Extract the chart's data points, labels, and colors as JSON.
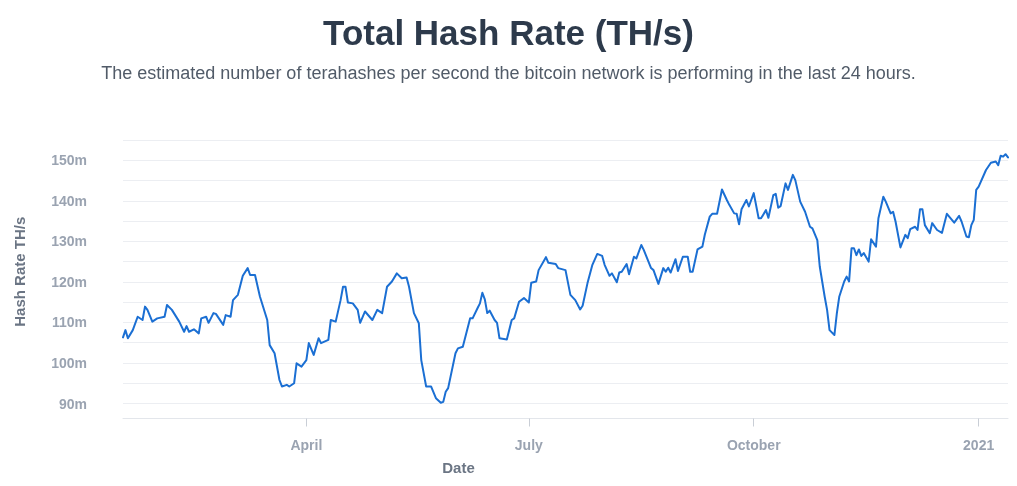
{
  "chart_data": {
    "type": "line",
    "title": "Total Hash Rate (TH/s)",
    "subtitle": "The estimated number of terahashes per second the bitcoin network is performing in the last 24 hours.",
    "xlabel": "Date",
    "ylabel": "Hash Rate TH/s",
    "color": "#1b6fd3",
    "grid": "y",
    "xlim": [
      "2020-01-17",
      "2021-01-13"
    ],
    "xticks": [
      {
        "value": "2020-04-01",
        "label": "April"
      },
      {
        "value": "2020-07-01",
        "label": "July"
      },
      {
        "value": "2020-10-01",
        "label": "October"
      },
      {
        "value": "2021-01-01",
        "label": "2021"
      }
    ],
    "ylim": [
      90000000,
      155000000
    ],
    "yticks": [
      {
        "value": 90000000,
        "label": "90m"
      },
      {
        "value": 95000000,
        "label": null
      },
      {
        "value": 100000000,
        "label": "100m"
      },
      {
        "value": 105000000,
        "label": null
      },
      {
        "value": 110000000,
        "label": "110m"
      },
      {
        "value": 115000000,
        "label": null
      },
      {
        "value": 120000000,
        "label": "120m"
      },
      {
        "value": 125000000,
        "label": null
      },
      {
        "value": 130000000,
        "label": "130m"
      },
      {
        "value": 135000000,
        "label": null
      },
      {
        "value": 140000000,
        "label": "140m"
      },
      {
        "value": 145000000,
        "label": null
      },
      {
        "value": 150000000,
        "label": "150m"
      },
      {
        "value": 155000000,
        "label": null
      }
    ],
    "x": [
      "2020-01-17",
      "2020-01-18",
      "2020-01-19",
      "2020-01-21",
      "2020-01-23",
      "2020-01-25",
      "2020-01-26",
      "2020-01-27",
      "2020-01-29",
      "2020-01-31",
      "2020-02-03",
      "2020-02-04",
      "2020-02-06",
      "2020-02-09",
      "2020-02-11",
      "2020-02-12",
      "2020-02-13",
      "2020-02-15",
      "2020-02-17",
      "2020-02-18",
      "2020-02-20",
      "2020-02-21",
      "2020-02-23",
      "2020-02-24",
      "2020-02-27",
      "2020-02-28",
      "2020-03-01",
      "2020-03-02",
      "2020-03-04",
      "2020-03-06",
      "2020-03-08",
      "2020-03-09",
      "2020-03-11",
      "2020-03-13",
      "2020-03-16",
      "2020-03-17",
      "2020-03-19",
      "2020-03-21",
      "2020-03-22",
      "2020-03-24",
      "2020-03-25",
      "2020-03-27",
      "2020-03-28",
      "2020-03-30",
      "2020-04-01",
      "2020-04-02",
      "2020-04-04",
      "2020-04-06",
      "2020-04-07",
      "2020-04-10",
      "2020-04-11",
      "2020-04-13",
      "2020-04-15",
      "2020-04-16",
      "2020-04-17",
      "2020-04-18",
      "2020-04-20",
      "2020-04-22",
      "2020-04-23",
      "2020-04-25",
      "2020-04-28",
      "2020-04-30",
      "2020-05-02",
      "2020-05-04",
      "2020-05-06",
      "2020-05-08",
      "2020-05-10",
      "2020-05-12",
      "2020-05-13",
      "2020-05-15",
      "2020-05-17",
      "2020-05-18",
      "2020-05-20",
      "2020-05-22",
      "2020-05-24",
      "2020-05-26",
      "2020-05-27",
      "2020-05-28",
      "2020-05-29",
      "2020-06-01",
      "2020-06-02",
      "2020-06-04",
      "2020-06-07",
      "2020-06-08",
      "2020-06-10",
      "2020-06-11",
      "2020-06-12",
      "2020-06-13",
      "2020-06-14",
      "2020-06-15",
      "2020-06-17",
      "2020-06-18",
      "2020-06-19",
      "2020-06-22",
      "2020-06-24",
      "2020-06-25",
      "2020-06-27",
      "2020-06-29",
      "2020-07-01",
      "2020-07-02",
      "2020-07-04",
      "2020-07-05",
      "2020-07-08",
      "2020-07-09",
      "2020-07-12",
      "2020-07-13",
      "2020-07-16",
      "2020-07-18",
      "2020-07-20",
      "2020-07-22",
      "2020-07-23",
      "2020-07-25",
      "2020-07-27",
      "2020-07-29",
      "2020-07-31",
      "2020-08-01",
      "2020-08-03",
      "2020-08-04",
      "2020-08-06",
      "2020-08-07",
      "2020-08-08",
      "2020-08-10",
      "2020-08-11",
      "2020-08-13",
      "2020-08-14",
      "2020-08-16",
      "2020-08-17",
      "2020-08-20",
      "2020-08-21",
      "2020-08-23",
      "2020-08-25",
      "2020-08-26",
      "2020-08-27",
      "2020-08-28",
      "2020-08-30",
      "2020-08-31",
      "2020-09-02",
      "2020-09-04",
      "2020-09-05",
      "2020-09-06",
      "2020-09-08",
      "2020-09-10",
      "2020-09-11",
      "2020-09-13",
      "2020-09-14",
      "2020-09-16",
      "2020-09-18",
      "2020-09-20",
      "2020-09-21",
      "2020-09-23",
      "2020-09-24",
      "2020-09-25",
      "2020-09-26",
      "2020-09-28",
      "2020-09-29",
      "2020-10-01",
      "2020-10-03",
      "2020-10-04",
      "2020-10-06",
      "2020-10-07",
      "2020-10-09",
      "2020-10-10",
      "2020-10-11",
      "2020-10-12",
      "2020-10-14",
      "2020-10-15",
      "2020-10-17",
      "2020-10-18",
      "2020-10-20",
      "2020-10-22",
      "2020-10-24",
      "2020-10-25",
      "2020-10-27",
      "2020-10-28",
      "2020-10-30",
      "2020-10-31",
      "2020-11-01",
      "2020-11-03",
      "2020-11-04",
      "2020-11-05",
      "2020-11-07",
      "2020-11-08",
      "2020-11-09",
      "2020-11-10",
      "2020-11-11",
      "2020-11-12",
      "2020-11-13",
      "2020-11-14",
      "2020-11-15",
      "2020-11-17",
      "2020-11-18",
      "2020-11-20",
      "2020-11-21",
      "2020-11-23",
      "2020-11-24",
      "2020-11-26",
      "2020-11-27",
      "2020-11-28",
      "2020-11-30",
      "2020-12-02",
      "2020-12-03",
      "2020-12-04",
      "2020-12-06",
      "2020-12-07",
      "2020-12-08",
      "2020-12-09",
      "2020-12-10",
      "2020-12-12",
      "2020-12-13",
      "2020-12-15",
      "2020-12-17",
      "2020-12-19",
      "2020-12-22",
      "2020-12-24",
      "2020-12-25",
      "2020-12-27",
      "2020-12-28",
      "2020-12-29",
      "2020-12-30",
      "2020-12-31",
      "2021-01-01",
      "2021-01-04",
      "2021-01-06",
      "2021-01-08",
      "2021-01-09",
      "2021-01-10",
      "2021-01-11",
      "2021-01-12",
      "2021-01-13"
    ],
    "values": [
      106300000,
      108100000,
      106100000,
      108100000,
      111400000,
      110600000,
      113900000,
      113100000,
      110200000,
      111000000,
      111400000,
      114300000,
      113100000,
      110200000,
      107700000,
      109100000,
      107700000,
      108300000,
      107300000,
      111000000,
      111400000,
      109900000,
      112300000,
      112100000,
      109400000,
      111800000,
      111400000,
      115500000,
      116800000,
      121500000,
      123400000,
      121700000,
      121700000,
      116400000,
      110600000,
      104400000,
      102400000,
      95800000,
      94200000,
      94600000,
      94200000,
      95000000,
      99900000,
      99100000,
      100700000,
      104900000,
      102000000,
      106100000,
      104900000,
      105700000,
      110600000,
      110200000,
      115500000,
      118800000,
      118800000,
      114900000,
      114700000,
      113100000,
      109900000,
      112700000,
      110600000,
      113100000,
      112300000,
      118800000,
      120100000,
      122100000,
      120900000,
      121100000,
      118800000,
      112300000,
      109800000,
      100700000,
      94200000,
      94200000,
      91300000,
      90200000,
      90400000,
      92900000,
      93800000,
      102400000,
      103600000,
      104000000,
      111000000,
      111000000,
      113500000,
      114700000,
      117300000,
      115700000,
      112300000,
      112900000,
      110600000,
      109900000,
      106100000,
      105800000,
      110600000,
      111000000,
      115100000,
      116000000,
      114900000,
      119800000,
      120100000,
      122900000,
      126100000,
      124700000,
      124400000,
      123400000,
      122900000,
      116800000,
      115500000,
      113200000,
      114100000,
      119700000,
      124200000,
      126900000,
      126400000,
      124200000,
      121500000,
      122100000,
      119900000,
      122300000,
      122500000,
      124400000,
      121900000,
      126200000,
      125800000,
      129100000,
      127900000,
      123400000,
      122900000,
      119500000,
      123400000,
      122500000,
      123500000,
      122300000,
      125600000,
      122700000,
      126200000,
      126200000,
      122500000,
      122500000,
      128000000,
      128700000,
      131700000,
      136100000,
      136800000,
      136800000,
      142800000,
      140200000,
      139000000,
      136900000,
      136800000,
      134200000,
      137900000,
      140200000,
      138600000,
      141900000,
      135700000,
      135700000,
      137700000,
      135800000,
      141400000,
      141700000,
      138300000,
      138700000,
      144300000,
      142700000,
      146400000,
      145100000,
      139800000,
      137300000,
      133600000,
      133200000,
      130300000,
      123800000,
      116400000,
      113100000,
      108100000,
      106900000,
      112300000,
      116400000,
      120100000,
      121300000,
      120100000,
      128300000,
      128300000,
      126600000,
      128000000,
      126400000,
      127100000,
      125000000,
      130500000,
      128700000,
      135700000,
      141000000,
      139800000,
      136900000,
      137300000,
      134900000,
      128500000,
      131600000,
      130800000,
      133000000,
      133600000,
      132800000,
      137900000,
      137900000,
      134000000,
      132000000,
      134500000,
      132800000,
      132100000,
      136800000,
      134600000,
      136300000,
      134900000,
      131200000,
      131000000,
      134000000,
      135300000,
      142700000,
      143500000,
      147600000,
      149400000,
      149700000,
      148800000,
      151100000,
      150900000,
      151500000,
      150700000
    ]
  }
}
